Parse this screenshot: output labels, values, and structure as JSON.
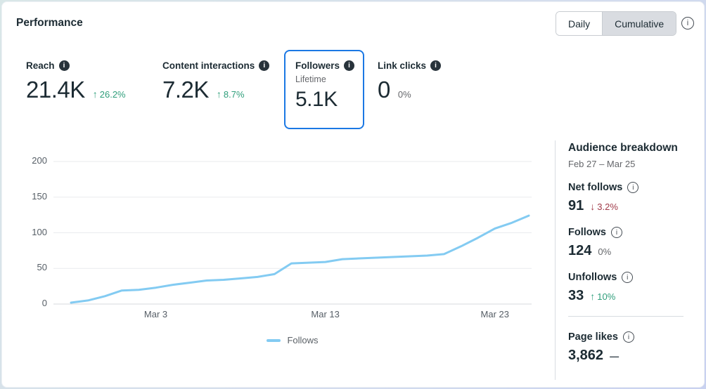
{
  "header": {
    "title": "Performance",
    "toggle": {
      "options": [
        "Daily",
        "Cumulative"
      ],
      "selected": "Cumulative"
    },
    "info_icon": "info-icon"
  },
  "metrics": [
    {
      "label": "Reach",
      "value": "21.4K",
      "arrow": "↑",
      "change": "26.2%",
      "direction": "up"
    },
    {
      "label": "Content interactions",
      "value": "7.2K",
      "arrow": "↑",
      "change": "8.7%",
      "direction": "up"
    },
    {
      "label": "Followers",
      "sublabel": "Lifetime",
      "value": "5.1K",
      "selected": true
    },
    {
      "label": "Link clicks",
      "value": "0",
      "arrow": "",
      "change": "0%",
      "direction": "none"
    }
  ],
  "chart_data": {
    "type": "line",
    "x": [
      "Feb 26",
      "Feb 27",
      "Feb 28",
      "Mar 1",
      "Mar 2",
      "Mar 3",
      "Mar 4",
      "Mar 5",
      "Mar 6",
      "Mar 7",
      "Mar 8",
      "Mar 9",
      "Mar 10",
      "Mar 11",
      "Mar 12",
      "Mar 13",
      "Mar 14",
      "Mar 15",
      "Mar 16",
      "Mar 17",
      "Mar 18",
      "Mar 19",
      "Mar 20",
      "Mar 21",
      "Mar 22",
      "Mar 23",
      "Mar 24",
      "Mar 25"
    ],
    "series": [
      {
        "name": "Follows",
        "color": "#83cbf2",
        "values": [
          2,
          5,
          11,
          19,
          20,
          23,
          27,
          30,
          33,
          34,
          36,
          38,
          42,
          57,
          58,
          59,
          63,
          64,
          65,
          66,
          67,
          68,
          70,
          81,
          93,
          106,
          114,
          124
        ]
      }
    ],
    "x_tick_labels": [
      {
        "label": "Mar 3",
        "index": 5
      },
      {
        "label": "Mar 13",
        "index": 15
      },
      {
        "label": "Mar 23",
        "index": 25
      }
    ],
    "y_ticks": [
      0,
      50,
      100,
      150,
      200
    ],
    "ylim": [
      0,
      200
    ],
    "grid": "horizontal",
    "legend": {
      "position": "bottom",
      "entries": [
        "Follows"
      ]
    }
  },
  "sidebar": {
    "title": "Audience breakdown",
    "date_range": "Feb 27 – Mar 25",
    "stats": [
      {
        "label": "Net follows",
        "value": "91",
        "arrow": "↓",
        "change": "3.2%",
        "direction": "down"
      },
      {
        "label": "Follows",
        "value": "124",
        "arrow": "",
        "change": "0%",
        "direction": "none"
      },
      {
        "label": "Unfollows",
        "value": "33",
        "arrow": "↑",
        "change": "10%",
        "direction": "up"
      },
      {
        "label": "Page likes",
        "value": "3,862",
        "arrow": "",
        "change": "—",
        "direction": "flat"
      }
    ]
  },
  "colors": {
    "text_dark": "#1c2b33",
    "neutral_gray": "#65676b",
    "positive_green": "#2f9e7b",
    "negative_red": "#a03b49",
    "line_blue": "#83cbf2",
    "selected_card_border": "#1b78e4",
    "selected_toggle_bg": "#d9dce1"
  }
}
